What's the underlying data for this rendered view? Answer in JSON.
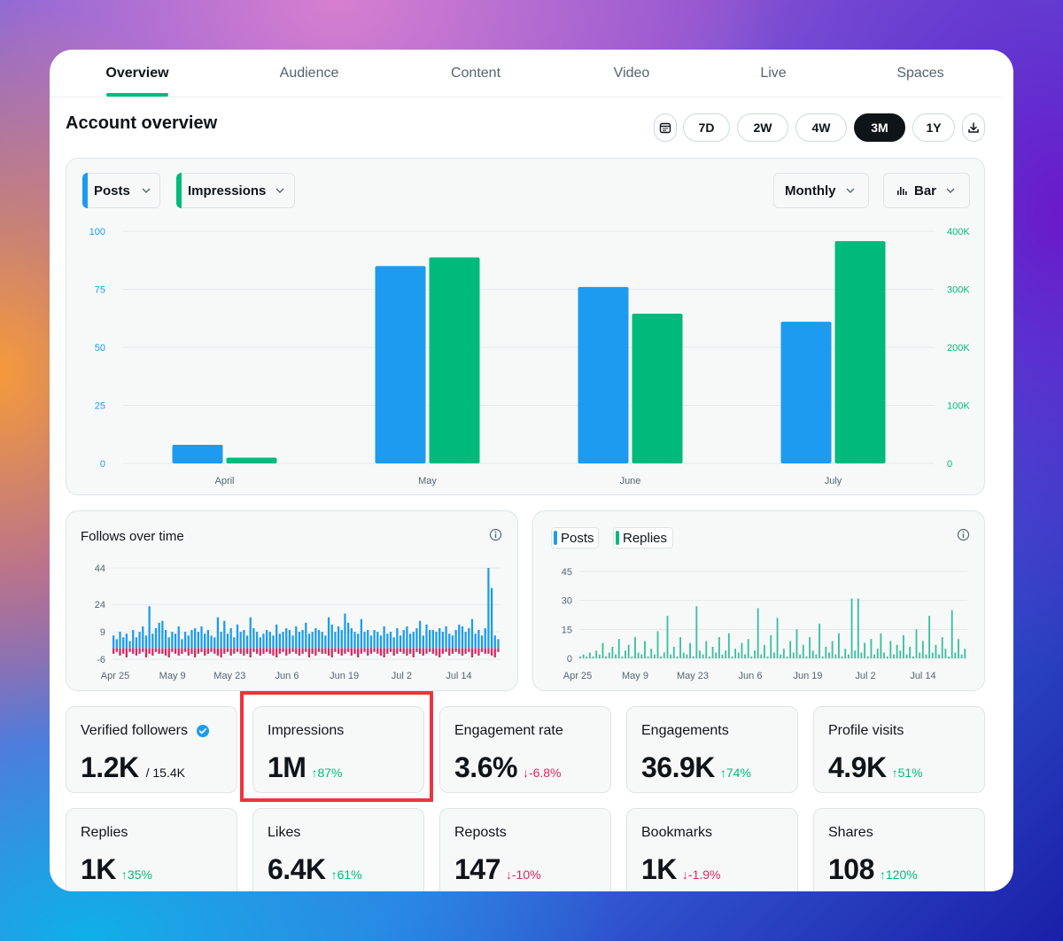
{
  "tabs": [
    "Overview",
    "Audience",
    "Content",
    "Video",
    "Live",
    "Spaces"
  ],
  "page_title": "Account overview",
  "ranges": [
    "7D",
    "2W",
    "4W",
    "3M",
    "1Y"
  ],
  "active_range": "3M",
  "main_chart_controls": {
    "metric1": "Posts",
    "metric2": "Impressions",
    "interval": "Monthly",
    "chart_type": "Bar"
  },
  "follows_title": "Follows over time",
  "posts_replies_chips": [
    "Posts",
    "Replies"
  ],
  "metrics": [
    {
      "label": "Verified followers",
      "value": "1.2K",
      "sub": "/ 15.4K",
      "change": "",
      "dir": ""
    },
    {
      "label": "Impressions",
      "value": "1M",
      "sub": "",
      "change": "87%",
      "dir": "up"
    },
    {
      "label": "Engagement rate",
      "value": "3.6%",
      "sub": "",
      "change": "-6.8%",
      "dir": "down"
    },
    {
      "label": "Engagements",
      "value": "36.9K",
      "sub": "",
      "change": "74%",
      "dir": "up"
    },
    {
      "label": "Profile visits",
      "value": "4.9K",
      "sub": "",
      "change": "51%",
      "dir": "up"
    },
    {
      "label": "Replies",
      "value": "1K",
      "sub": "",
      "change": "35%",
      "dir": "up"
    },
    {
      "label": "Likes",
      "value": "6.4K",
      "sub": "",
      "change": "61%",
      "dir": "up"
    },
    {
      "label": "Reposts",
      "value": "147",
      "sub": "",
      "change": "-10%",
      "dir": "down"
    },
    {
      "label": "Bookmarks",
      "value": "1K",
      "sub": "",
      "change": "-1.9%",
      "dir": "down"
    },
    {
      "label": "Shares",
      "value": "108",
      "sub": "",
      "change": "120%",
      "dir": "up"
    }
  ],
  "colors": {
    "posts": "#1d9bf0",
    "impressions": "#00ba7c",
    "unfollows": "#e0245e",
    "replies": "#3bbfa0",
    "highlight": "#ee3340"
  },
  "chart_data": [
    {
      "type": "bar",
      "categories": [
        "April",
        "May",
        "June",
        "July"
      ],
      "series": [
        {
          "name": "Posts",
          "axis": "left",
          "values": [
            8,
            85,
            76,
            61
          ]
        },
        {
          "name": "Impressions",
          "axis": "right",
          "values": [
            10000,
            355000,
            258000,
            383000
          ]
        }
      ],
      "left_ticks": [
        "0",
        "25",
        "50",
        "75",
        "100"
      ],
      "right_ticks": [
        "0",
        "100K",
        "200K",
        "300K",
        "400K"
      ],
      "ylim_left": [
        0,
        100
      ],
      "ylim_right": [
        0,
        400000
      ],
      "grid": true
    },
    {
      "type": "bar",
      "title": "Follows over time",
      "y_ticks": [
        "44",
        "24",
        "9",
        "-6"
      ],
      "ylim": [
        -6,
        44
      ],
      "x_ticks": [
        "Apr 25",
        "May 9",
        "May 23",
        "Jun 6",
        "Jun 19",
        "Jul 2",
        "Jul 14"
      ],
      "follows": [
        7,
        5,
        9,
        6,
        8,
        4,
        10,
        6,
        9,
        12,
        7,
        23,
        8,
        11,
        14,
        15,
        10,
        6,
        9,
        8,
        12,
        5,
        9,
        7,
        10,
        11,
        9,
        12,
        8,
        10,
        7,
        6,
        17,
        9,
        15,
        8,
        11,
        6,
        13,
        9,
        10,
        7,
        17,
        11,
        9,
        6,
        8,
        10,
        9,
        7,
        13,
        8,
        9,
        11,
        10,
        7,
        12,
        9,
        10,
        14,
        8,
        9,
        11,
        10,
        9,
        7,
        17,
        13,
        9,
        12,
        10,
        19,
        14,
        11,
        9,
        8,
        16,
        9,
        10,
        7,
        10,
        9,
        7,
        12,
        8,
        9,
        6,
        11,
        7,
        10,
        12,
        8,
        9,
        11,
        15,
        7,
        13,
        10,
        10,
        9,
        11,
        9,
        12,
        8,
        7,
        10,
        13,
        12,
        9,
        11,
        16,
        8,
        10,
        7,
        11,
        44,
        33,
        7,
        5
      ],
      "unfollows": [
        -3,
        -2,
        -4,
        -3,
        -5,
        -2,
        -3,
        -4,
        -3,
        -2,
        -5,
        -3,
        -4,
        -2,
        -3,
        -3,
        -4,
        -5,
        -2,
        -3,
        -4,
        -3,
        -2,
        -4,
        -3,
        -5,
        -3,
        -2,
        -4,
        -3,
        -2,
        -3,
        -4,
        -5,
        -3,
        -2,
        -4,
        -3,
        -2,
        -3,
        -4,
        -3,
        -5,
        -2,
        -3,
        -4,
        -3,
        -2,
        -3,
        -4,
        -5,
        -3,
        -2,
        -4,
        -3,
        -2,
        -3,
        -4,
        -3,
        -2,
        -5,
        -3,
        -4,
        -2,
        -3,
        -3,
        -4,
        -5,
        -2,
        -3,
        -4,
        -3,
        -2,
        -4,
        -3,
        -5,
        -3,
        -2,
        -4,
        -3,
        -2,
        -3,
        -4,
        -5,
        -3,
        -2,
        -4,
        -3,
        -2,
        -3,
        -4,
        -3,
        -5,
        -2,
        -3,
        -4,
        -3,
        -2,
        -3,
        -4,
        -5,
        -3,
        -2,
        -4,
        -3,
        -2,
        -3,
        -4,
        -3,
        -2,
        -5,
        -3,
        -4,
        -2,
        -3,
        -3,
        -4,
        -5,
        -2
      ]
    },
    {
      "type": "bar",
      "series_names": [
        "Posts",
        "Replies"
      ],
      "y_ticks": [
        "45",
        "30",
        "15",
        "0"
      ],
      "ylim": [
        0,
        45
      ],
      "x_ticks": [
        "Apr 25",
        "May 9",
        "May 23",
        "Jun 6",
        "Jun 19",
        "Jul 2",
        "Jul 14"
      ],
      "values": [
        1,
        2,
        1,
        3,
        1,
        4,
        2,
        8,
        1,
        3,
        6,
        2,
        10,
        1,
        4,
        7,
        1,
        11,
        3,
        2,
        9,
        1,
        5,
        2,
        14,
        1,
        3,
        22,
        2,
        6,
        1,
        11,
        3,
        2,
        8,
        1,
        27,
        4,
        2,
        9,
        1,
        6,
        3,
        11,
        2,
        4,
        13,
        1,
        5,
        3,
        8,
        2,
        10,
        1,
        4,
        26,
        2,
        7,
        1,
        12,
        3,
        21,
        2,
        5,
        1,
        9,
        3,
        15,
        2,
        7,
        1,
        11,
        4,
        2,
        18,
        1,
        6,
        3,
        9,
        2,
        13,
        1,
        5,
        2,
        31,
        4,
        31,
        3,
        8,
        1,
        10,
        2,
        5,
        13,
        3,
        1,
        9,
        2,
        7,
        4,
        12,
        2,
        6,
        1,
        15,
        3,
        9,
        2,
        22,
        3,
        7,
        2,
        11,
        5,
        1,
        25,
        3,
        10,
        2,
        5
      ]
    }
  ]
}
